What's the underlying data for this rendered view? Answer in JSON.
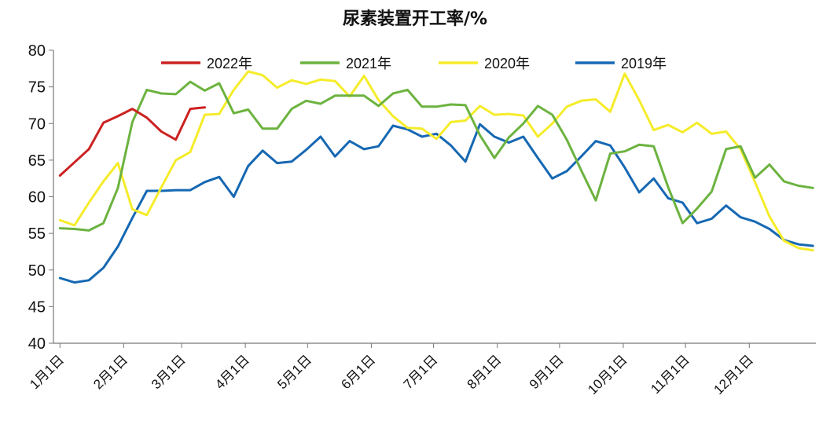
{
  "chart_data": {
    "type": "line",
    "title": "尿素装置开工率/%",
    "xlabel": "",
    "ylabel": "",
    "ylim": [
      40,
      80
    ],
    "yticks": [
      40,
      45,
      50,
      55,
      60,
      65,
      70,
      75,
      80
    ],
    "x_tick_labels": [
      "1月1日",
      "2月1日",
      "3月1日",
      "4月1日",
      "5月1日",
      "6月1日",
      "7月1日",
      "8月1日",
      "9月1日",
      "10月1日",
      "11月1日",
      "12月1日"
    ],
    "x_unit": "week of year",
    "x_ticks_week": [
      1,
      5.4,
      9.4,
      13.8,
      18.1,
      22.5,
      26.8,
      31.2,
      35.5,
      39.9,
      44.2,
      48.6
    ],
    "legend_position": "top",
    "grid": false,
    "series": [
      {
        "name": "2022年",
        "color": "#cc2222",
        "x": [
          1,
          2,
          3,
          4,
          5,
          6,
          7,
          8,
          9,
          10,
          11
        ],
        "values": [
          62.9,
          64.7,
          66.5,
          70.1,
          71.0,
          72.0,
          70.8,
          68.9,
          67.8,
          72.0,
          72.2
        ]
      },
      {
        "name": "2021年",
        "color": "#6cb33f",
        "x": [
          1,
          2,
          3,
          4,
          5,
          6,
          7,
          8,
          9,
          10,
          11,
          12,
          13,
          14,
          15,
          16,
          17,
          18,
          19,
          20,
          21,
          22,
          23,
          24,
          25,
          26,
          27,
          28,
          29,
          30,
          31,
          32,
          33,
          34,
          35,
          36,
          37,
          38,
          39,
          40,
          41,
          42,
          43,
          44,
          45,
          46,
          47,
          48,
          49,
          50,
          51,
          52,
          53
        ],
        "values": [
          55.7,
          55.6,
          55.4,
          56.4,
          61.2,
          70.2,
          74.6,
          74.1,
          74.0,
          75.7,
          74.5,
          75.5,
          71.4,
          71.9,
          69.3,
          69.3,
          72.0,
          73.1,
          72.7,
          73.8,
          73.8,
          73.8,
          72.4,
          74.1,
          74.6,
          72.3,
          72.3,
          72.6,
          72.5,
          68.4,
          65.3,
          68.1,
          70.0,
          72.4,
          71.2,
          67.8,
          63.6,
          59.5,
          65.9,
          66.2,
          67.1,
          66.9,
          61.3,
          56.4,
          58.4,
          60.7,
          66.5,
          66.9,
          62.6,
          64.4,
          62.1,
          61.5,
          61.2
        ]
      },
      {
        "name": "2020年",
        "color": "#f5ec2a",
        "x": [
          1,
          2,
          3,
          4,
          5,
          6,
          7,
          8,
          9,
          10,
          11,
          12,
          13,
          14,
          15,
          16,
          17,
          18,
          19,
          20,
          21,
          22,
          23,
          24,
          25,
          26,
          27,
          28,
          29,
          30,
          31,
          32,
          33,
          34,
          35,
          36,
          37,
          38,
          39,
          40,
          41,
          42,
          43,
          44,
          45,
          46,
          47,
          48,
          49,
          50,
          51,
          52,
          53
        ],
        "values": [
          56.8,
          56.1,
          59.2,
          62.1,
          64.6,
          58.3,
          57.5,
          61.3,
          65.0,
          66.1,
          71.2,
          71.3,
          74.6,
          77.1,
          76.6,
          74.9,
          75.9,
          75.4,
          76.0,
          75.8,
          73.7,
          76.5,
          73.2,
          71.0,
          69.4,
          69.3,
          67.9,
          70.2,
          70.4,
          72.4,
          71.2,
          71.3,
          71.1,
          68.2,
          70.0,
          72.3,
          73.1,
          73.3,
          71.6,
          76.8,
          73.2,
          69.1,
          69.8,
          68.8,
          70.1,
          68.6,
          68.9,
          66.5,
          62.0,
          57.3,
          54.0,
          53.0,
          52.7
        ]
      },
      {
        "name": "2019年",
        "color": "#1668b3",
        "x": [
          1,
          2,
          3,
          4,
          5,
          6,
          7,
          8,
          9,
          10,
          11,
          12,
          13,
          14,
          15,
          16,
          17,
          18,
          19,
          20,
          21,
          22,
          23,
          24,
          25,
          26,
          27,
          28,
          29,
          30,
          31,
          32,
          33,
          34,
          35,
          36,
          37,
          38,
          39,
          40,
          41,
          42,
          43,
          44,
          45,
          46,
          47,
          48,
          49,
          50,
          51,
          52,
          53
        ],
        "values": [
          48.9,
          48.3,
          48.6,
          50.3,
          53.2,
          57.1,
          60.8,
          60.8,
          60.9,
          60.9,
          62.0,
          62.7,
          60.0,
          64.2,
          66.3,
          64.6,
          64.8,
          66.4,
          68.2,
          65.5,
          67.6,
          66.5,
          66.9,
          69.7,
          69.2,
          68.2,
          68.6,
          67.0,
          64.8,
          69.9,
          68.2,
          67.4,
          68.2,
          65.3,
          62.5,
          63.5,
          65.5,
          67.6,
          67.0,
          64.0,
          60.6,
          62.5,
          59.8,
          59.2,
          56.4,
          57.0,
          58.8,
          57.2,
          56.6,
          55.6,
          54.1,
          53.5,
          53.3
        ]
      }
    ]
  }
}
